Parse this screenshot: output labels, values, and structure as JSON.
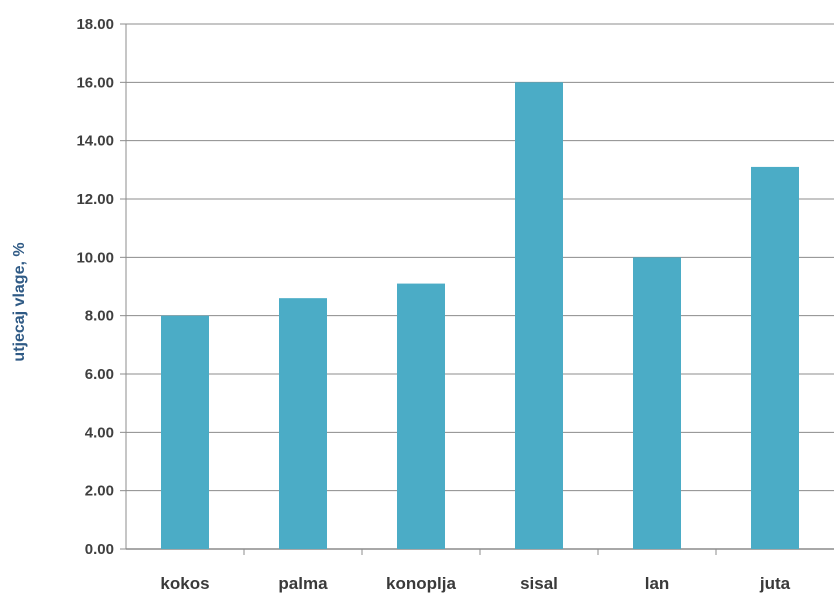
{
  "chart_data": {
    "type": "bar",
    "title": "",
    "xlabel": "",
    "ylabel": "utjecaj vlage, %",
    "categories": [
      "kokos",
      "palma",
      "konoplja",
      "sisal",
      "lan",
      "juta"
    ],
    "values": [
      8.0,
      8.6,
      9.1,
      16.0,
      10.0,
      13.1
    ],
    "ylim": [
      0,
      18
    ],
    "yticks": [
      "0.00",
      "2.00",
      "4.00",
      "6.00",
      "8.00",
      "10.00",
      "12.00",
      "14.00",
      "16.00",
      "18.00"
    ],
    "grid": true,
    "legend": "none",
    "bar_color": "#4bacc6",
    "grid_color": "#8c8c8c",
    "ylabel_color": "#2f5a85"
  }
}
